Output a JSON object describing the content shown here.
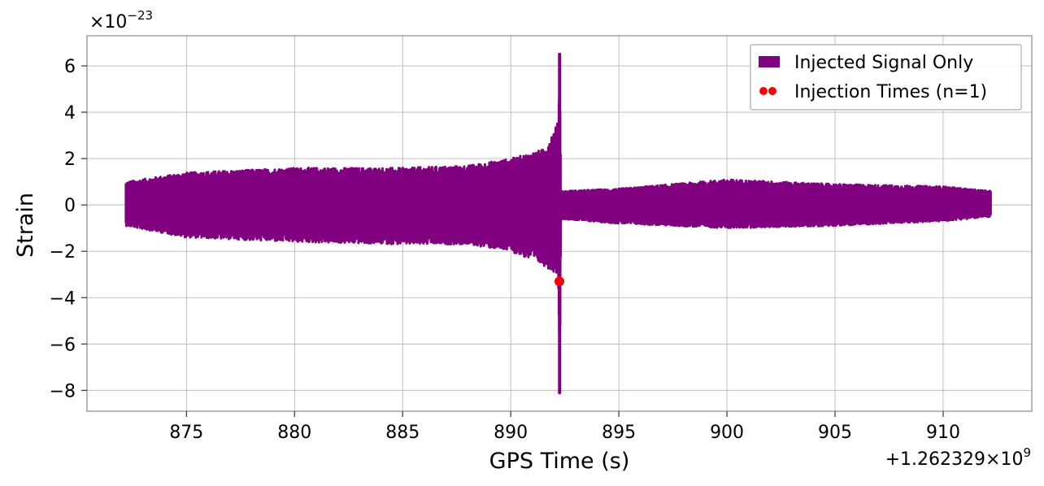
{
  "chart_data": {
    "type": "line",
    "xlabel": "GPS Time (s)",
    "ylabel": "Strain",
    "x_offset_label": "+1.262329×10",
    "x_offset_exp": "9",
    "y_scale_label": "×10",
    "y_scale_exp": "−23",
    "xlim": [
      870.4,
      914.1
    ],
    "ylim": [
      -8.9,
      7.3
    ],
    "x_ticks": [
      875,
      880,
      885,
      890,
      895,
      900,
      905,
      910
    ],
    "x_tick_labels": [
      "875",
      "880",
      "885",
      "890",
      "895",
      "900",
      "905",
      "910"
    ],
    "y_ticks": [
      -8,
      -6,
      -4,
      -2,
      0,
      2,
      4,
      6
    ],
    "y_tick_labels": [
      "−8",
      "−6",
      "−4",
      "−2",
      "0",
      "2",
      "4",
      "6"
    ],
    "grid": true,
    "legend_position": "top-right",
    "series": [
      {
        "name": "Injected Signal Only",
        "kind": "line",
        "color": "#800080",
        "x_start": 872.2,
        "x_end": 912.2,
        "envelope": [
          {
            "x": 872.2,
            "min": -0.9,
            "max": 1.0
          },
          {
            "x": 875.0,
            "min": -1.4,
            "max": 1.4
          },
          {
            "x": 880.0,
            "min": -1.6,
            "max": 1.6
          },
          {
            "x": 885.0,
            "min": -1.7,
            "max": 1.6
          },
          {
            "x": 888.0,
            "min": -1.7,
            "max": 1.7
          },
          {
            "x": 890.0,
            "min": -2.0,
            "max": 2.0
          },
          {
            "x": 891.5,
            "min": -2.6,
            "max": 2.4
          },
          {
            "x": 892.2,
            "min": -3.0,
            "max": 3.6
          },
          {
            "x": 892.26,
            "min": -8.1,
            "max": 6.5
          },
          {
            "x": 892.32,
            "min": -0.6,
            "max": 0.6
          },
          {
            "x": 895.0,
            "min": -0.8,
            "max": 0.7
          },
          {
            "x": 900.0,
            "min": -1.0,
            "max": 1.1
          },
          {
            "x": 905.0,
            "min": -0.9,
            "max": 0.9
          },
          {
            "x": 910.0,
            "min": -0.7,
            "max": 0.8
          },
          {
            "x": 912.2,
            "min": -0.5,
            "max": 0.6
          }
        ]
      },
      {
        "name": "Injection Times (n=1)",
        "kind": "scatter",
        "color": "#ff0000",
        "points": [
          {
            "x": 892.25,
            "y": -3.3
          }
        ]
      }
    ]
  }
}
